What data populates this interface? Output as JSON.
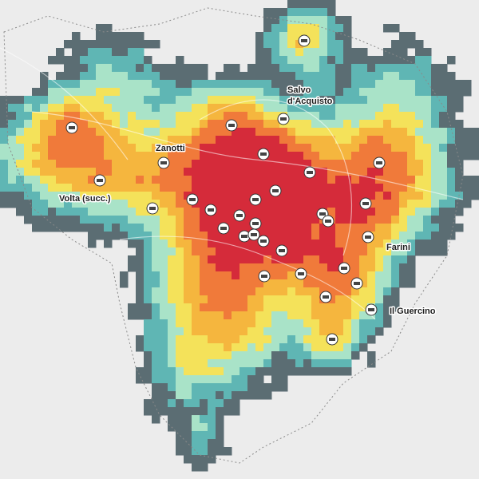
{
  "labels": [
    {
      "lines": [
        "Salvo",
        "d'Acquisto"
      ]
    },
    {
      "lines": [
        "Zanotti"
      ]
    },
    {
      "lines": [
        "Volta (succ.)"
      ]
    },
    {
      "lines": [
        "Farini"
      ]
    },
    {
      "lines": [
        "Il Guercino"
      ]
    }
  ]
}
